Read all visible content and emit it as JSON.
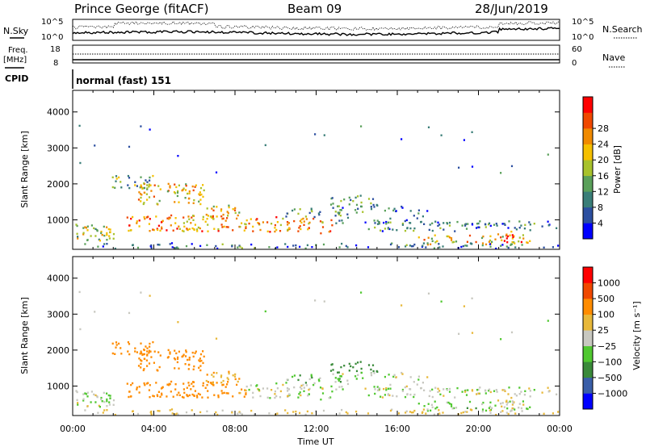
{
  "header": {
    "station": "Prince George (fitACF)",
    "beam": "Beam 09",
    "date": "28/Jun/2019"
  },
  "top_panels": {
    "nsky_label": "N.Sky",
    "nsearch_label": "N.Search",
    "noise_ticks": [
      "10^5",
      "10^0"
    ],
    "freq_label_1": "Freq.",
    "freq_label_2": "[MHz]",
    "freq_ticks": [
      "18",
      "8"
    ],
    "nave_label": "Nave",
    "nave_ticks": [
      "60",
      "0"
    ],
    "cpid_label": "CPID",
    "cpid_value": "normal (fast) 151"
  },
  "colors": {
    "power_scale": [
      "#0000ff",
      "#2c4fa0",
      "#3a7e78",
      "#5aa05a",
      "#a8c22c",
      "#f5c000",
      "#f08a00",
      "#f04800",
      "#ff0000"
    ],
    "velocity_scale": [
      "#ff0000",
      "#f04800",
      "#ff8c00",
      "#e8b83a",
      "#c8c8c0",
      "#50c830",
      "#3a8a3a",
      "#3a5ea8",
      "#0000ff"
    ]
  },
  "chart_data": [
    {
      "type": "heatmap",
      "panel": "power",
      "ylabel": "Slant Range [km]",
      "xlabel": "Time UT",
      "xlim_hours": [
        0,
        24
      ],
      "ylim_km": [
        180,
        4600
      ],
      "x_tick_labels": [
        "00:00",
        "04:00",
        "08:00",
        "12:00",
        "16:00",
        "20:00",
        "00:00"
      ],
      "y_tick_labels": [
        "1000",
        "2000",
        "3000",
        "4000"
      ],
      "y_ticks": [
        1000,
        2000,
        3000,
        4000
      ],
      "colorbar_label": "Power [dB]",
      "colorbar_ticks": [
        "4",
        "8",
        "12",
        "16",
        "20",
        "24",
        "28"
      ],
      "colorbar_range": [
        0,
        30
      ]
    },
    {
      "type": "heatmap",
      "panel": "velocity",
      "ylabel": "Slant Range [km]",
      "xlabel": "Time UT",
      "xlim_hours": [
        0,
        24
      ],
      "ylim_km": [
        180,
        4600
      ],
      "x_tick_labels": [
        "00:00",
        "04:00",
        "08:00",
        "12:00",
        "16:00",
        "20:00",
        "00:00"
      ],
      "y_tick_labels": [
        "1000",
        "2000",
        "3000",
        "4000"
      ],
      "y_ticks": [
        1000,
        2000,
        3000,
        4000
      ],
      "colorbar_label": "Velocity [m s⁻¹]",
      "colorbar_ticks": [
        "1000",
        "500",
        "100",
        "25",
        "−25",
        "−100",
        "−500",
        "−1000"
      ]
    }
  ],
  "axis_title": "Time UT"
}
